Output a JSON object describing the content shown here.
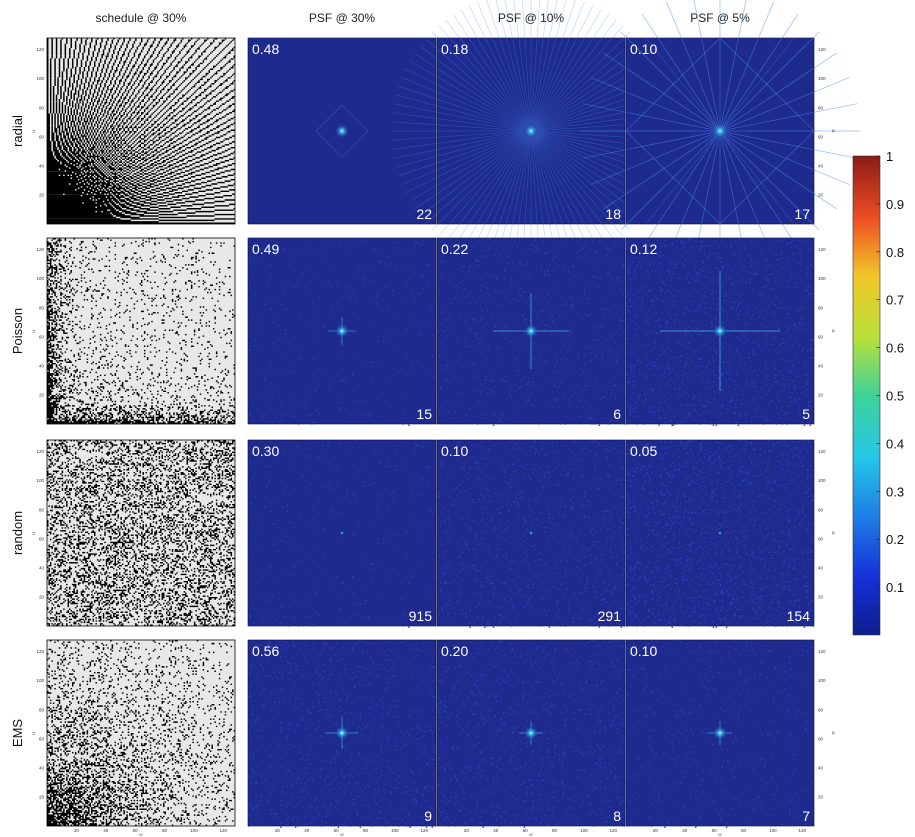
{
  "chart_data": {
    "type": "heatmap",
    "column_titles": [
      "schedule @ 30%",
      "PSF @ 30%",
      "PSF @ 10%",
      "PSF @ 5%"
    ],
    "row_titles": [
      "radial",
      "Poisson",
      "random",
      "EMS"
    ],
    "schedule_axis": {
      "x_range": [
        0,
        128
      ],
      "y_range": [
        0,
        128
      ],
      "ticks": [
        "20",
        "40",
        "60",
        "80",
        "100",
        "120"
      ],
      "x_label": "t2",
      "y_label": "t1"
    },
    "psf_axis": {
      "ticks": [
        "20",
        "40",
        "60",
        "80",
        "100",
        "120"
      ],
      "y_label": "f1",
      "x_label": "f2"
    },
    "psf_values": [
      [
        {
          "top": "0.48",
          "bottom": "22"
        },
        {
          "top": "0.18",
          "bottom": "18"
        },
        {
          "top": "0.10",
          "bottom": "17"
        }
      ],
      [
        {
          "top": "0.49",
          "bottom": "15"
        },
        {
          "top": "0.22",
          "bottom": "6"
        },
        {
          "top": "0.12",
          "bottom": "5"
        }
      ],
      [
        {
          "top": "0.30",
          "bottom": "915"
        },
        {
          "top": "0.10",
          "bottom": "291"
        },
        {
          "top": "0.05",
          "bottom": "154"
        }
      ],
      [
        {
          "top": "0.56",
          "bottom": "9"
        },
        {
          "top": "0.20",
          "bottom": "8"
        },
        {
          "top": "0.10",
          "bottom": "7"
        }
      ]
    ],
    "colorbar": {
      "min": 0,
      "max": 1,
      "colormap": "jet",
      "ticks": [
        "0.1",
        "0.2",
        "0.3",
        "0.4",
        "0.5",
        "0.6",
        "0.7",
        "0.8",
        "0.9",
        "1"
      ]
    },
    "grid": false
  }
}
